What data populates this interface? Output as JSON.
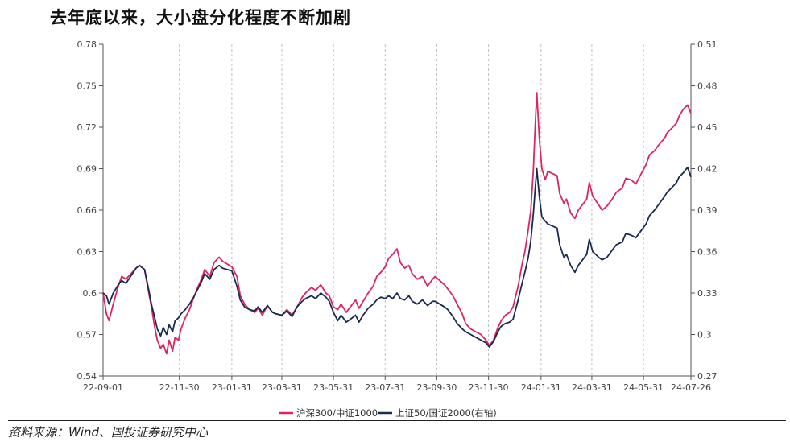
{
  "title": "去年底以来，大小盘分化程度不断加剧",
  "source": "资料来源：Wind、国投证券研究中心",
  "chart_data": {
    "type": "line",
    "x_ticks": [
      "22-09-01",
      "22-11-30",
      "23-01-31",
      "23-03-31",
      "23-05-31",
      "23-07-31",
      "23-09-30",
      "23-11-30",
      "24-01-31",
      "24-03-31",
      "24-05-31",
      "24-07-26"
    ],
    "y_left": {
      "min": 0.54,
      "max": 0.78,
      "ticks": [
        "0.54",
        "0.57",
        "0.6",
        "0.63",
        "0.66",
        "0.69",
        "0.72",
        "0.75",
        "0.78"
      ]
    },
    "y_right": {
      "min": 0.27,
      "max": 0.51,
      "ticks": [
        "0.27",
        "0.3",
        "0.33",
        "0.36",
        "0.39",
        "0.42",
        "0.45",
        "0.48",
        "0.51"
      ]
    },
    "grid": "vertical dashed",
    "legend_position": "bottom",
    "series": [
      {
        "name": "沪深300/中证1000",
        "axis": "left",
        "color": "#e0245e",
        "points": [
          [
            "22-09-01",
            0.6
          ],
          [
            "22-09-05",
            0.585
          ],
          [
            "22-09-08",
            0.58
          ],
          [
            "22-09-13",
            0.592
          ],
          [
            "22-09-19",
            0.605
          ],
          [
            "22-09-23",
            0.612
          ],
          [
            "22-09-28",
            0.61
          ],
          [
            "22-10-10",
            0.618
          ],
          [
            "22-10-14",
            0.62
          ],
          [
            "22-10-20",
            0.617
          ],
          [
            "22-10-25",
            0.6
          ],
          [
            "22-10-28",
            0.59
          ],
          [
            "22-11-01",
            0.575
          ],
          [
            "22-11-04",
            0.566
          ],
          [
            "22-11-08",
            0.56
          ],
          [
            "22-11-11",
            0.563
          ],
          [
            "22-11-15",
            0.556
          ],
          [
            "22-11-18",
            0.566
          ],
          [
            "22-11-22",
            0.558
          ],
          [
            "22-11-25",
            0.568
          ],
          [
            "22-11-29",
            0.566
          ],
          [
            "22-12-02",
            0.574
          ],
          [
            "22-12-07",
            0.582
          ],
          [
            "22-12-12",
            0.588
          ],
          [
            "22-12-16",
            0.595
          ],
          [
            "22-12-21",
            0.603
          ],
          [
            "22-12-26",
            0.61
          ],
          [
            "22-12-30",
            0.617
          ],
          [
            "23-01-05",
            0.612
          ],
          [
            "23-01-10",
            0.622
          ],
          [
            "23-01-16",
            0.626
          ],
          [
            "23-01-20",
            0.623
          ],
          [
            "23-01-31",
            0.619
          ],
          [
            "23-02-06",
            0.612
          ],
          [
            "23-02-10",
            0.598
          ],
          [
            "23-02-15",
            0.592
          ],
          [
            "23-02-21",
            0.588
          ],
          [
            "23-02-27",
            0.586
          ],
          [
            "23-03-03",
            0.589
          ],
          [
            "23-03-08",
            0.584
          ],
          [
            "23-03-14",
            0.591
          ],
          [
            "23-03-20",
            0.586
          ],
          [
            "23-03-24",
            0.585
          ],
          [
            "23-03-31",
            0.584
          ],
          [
            "23-04-06",
            0.588
          ],
          [
            "23-04-12",
            0.584
          ],
          [
            "23-04-18",
            0.59
          ],
          [
            "23-04-24",
            0.597
          ],
          [
            "23-04-28",
            0.6
          ],
          [
            "23-05-05",
            0.604
          ],
          [
            "23-05-10",
            0.602
          ],
          [
            "23-05-16",
            0.606
          ],
          [
            "23-05-22",
            0.6
          ],
          [
            "23-05-26",
            0.598
          ],
          [
            "23-05-31",
            0.59
          ],
          [
            "23-06-05",
            0.588
          ],
          [
            "23-06-09",
            0.592
          ],
          [
            "23-06-15",
            0.586
          ],
          [
            "23-06-20",
            0.59
          ],
          [
            "23-06-26",
            0.595
          ],
          [
            "23-06-30",
            0.589
          ],
          [
            "23-07-05",
            0.594
          ],
          [
            "23-07-11",
            0.6
          ],
          [
            "23-07-17",
            0.605
          ],
          [
            "23-07-21",
            0.612
          ],
          [
            "23-07-26",
            0.615
          ],
          [
            "23-07-31",
            0.619
          ],
          [
            "23-08-04",
            0.625
          ],
          [
            "23-08-09",
            0.628
          ],
          [
            "23-08-14",
            0.632
          ],
          [
            "23-08-18",
            0.622
          ],
          [
            "23-08-23",
            0.618
          ],
          [
            "23-08-28",
            0.62
          ],
          [
            "23-09-01",
            0.614
          ],
          [
            "23-09-07",
            0.61
          ],
          [
            "23-09-13",
            0.612
          ],
          [
            "23-09-19",
            0.605
          ],
          [
            "23-09-25",
            0.61
          ],
          [
            "23-09-28",
            0.612
          ],
          [
            "23-10-09",
            0.606
          ],
          [
            "23-10-13",
            0.603
          ],
          [
            "23-10-19",
            0.598
          ],
          [
            "23-10-24",
            0.592
          ],
          [
            "23-10-30",
            0.585
          ],
          [
            "23-11-03",
            0.578
          ],
          [
            "23-11-09",
            0.574
          ],
          [
            "23-11-15",
            0.572
          ],
          [
            "23-11-21",
            0.57
          ],
          [
            "23-11-27",
            0.566
          ],
          [
            "23-12-01",
            0.562
          ],
          [
            "23-12-06",
            0.566
          ],
          [
            "23-12-11",
            0.575
          ],
          [
            "23-12-15",
            0.58
          ],
          [
            "23-12-20",
            0.584
          ],
          [
            "23-12-25",
            0.586
          ],
          [
            "23-12-29",
            0.59
          ],
          [
            "24-01-04",
            0.605
          ],
          [
            "24-01-09",
            0.622
          ],
          [
            "24-01-12",
            0.63
          ],
          [
            "24-01-16",
            0.646
          ],
          [
            "24-01-19",
            0.66
          ],
          [
            "24-01-22",
            0.69
          ],
          [
            "24-01-24",
            0.72
          ],
          [
            "24-01-26",
            0.745
          ],
          [
            "24-01-29",
            0.712
          ],
          [
            "24-02-01",
            0.69
          ],
          [
            "24-02-05",
            0.682
          ],
          [
            "24-02-08",
            0.688
          ],
          [
            "24-02-19",
            0.685
          ],
          [
            "24-02-22",
            0.672
          ],
          [
            "24-02-27",
            0.665
          ],
          [
            "24-03-01",
            0.668
          ],
          [
            "24-03-06",
            0.658
          ],
          [
            "24-03-11",
            0.654
          ],
          [
            "24-03-15",
            0.66
          ],
          [
            "24-03-20",
            0.664
          ],
          [
            "24-03-25",
            0.668
          ],
          [
            "24-03-28",
            0.68
          ],
          [
            "24-04-01",
            0.67
          ],
          [
            "24-04-08",
            0.664
          ],
          [
            "24-04-12",
            0.66
          ],
          [
            "24-04-18",
            0.663
          ],
          [
            "24-04-24",
            0.668
          ],
          [
            "24-04-29",
            0.673
          ],
          [
            "24-05-06",
            0.676
          ],
          [
            "24-05-10",
            0.683
          ],
          [
            "24-05-16",
            0.682
          ],
          [
            "24-05-22",
            0.679
          ],
          [
            "24-05-28",
            0.686
          ],
          [
            "24-06-03",
            0.693
          ],
          [
            "24-06-07",
            0.7
          ],
          [
            "24-06-13",
            0.703
          ],
          [
            "24-06-19",
            0.708
          ],
          [
            "24-06-25",
            0.712
          ],
          [
            "24-06-28",
            0.716
          ],
          [
            "24-07-03",
            0.719
          ],
          [
            "24-07-09",
            0.723
          ],
          [
            "24-07-12",
            0.728
          ],
          [
            "24-07-17",
            0.733
          ],
          [
            "24-07-22",
            0.736
          ],
          [
            "24-07-26",
            0.73
          ]
        ]
      },
      {
        "name": "上证50/国证2000(右轴)",
        "axis": "right",
        "color": "#1a2a52",
        "points": [
          [
            "22-09-01",
            0.33
          ],
          [
            "22-09-05",
            0.328
          ],
          [
            "22-09-08",
            0.322
          ],
          [
            "22-09-13",
            0.33
          ],
          [
            "22-09-19",
            0.336
          ],
          [
            "22-09-23",
            0.339
          ],
          [
            "22-09-28",
            0.337
          ],
          [
            "22-10-10",
            0.348
          ],
          [
            "22-10-14",
            0.35
          ],
          [
            "22-10-20",
            0.347
          ],
          [
            "22-10-25",
            0.332
          ],
          [
            "22-10-28",
            0.322
          ],
          [
            "22-11-01",
            0.312
          ],
          [
            "22-11-04",
            0.304
          ],
          [
            "22-11-08",
            0.299
          ],
          [
            "22-11-11",
            0.305
          ],
          [
            "22-11-15",
            0.3
          ],
          [
            "22-11-18",
            0.307
          ],
          [
            "22-11-22",
            0.302
          ],
          [
            "22-11-25",
            0.31
          ],
          [
            "22-11-29",
            0.312
          ],
          [
            "22-12-02",
            0.315
          ],
          [
            "22-12-07",
            0.318
          ],
          [
            "22-12-12",
            0.322
          ],
          [
            "22-12-16",
            0.326
          ],
          [
            "22-12-21",
            0.332
          ],
          [
            "22-12-26",
            0.338
          ],
          [
            "22-12-30",
            0.344
          ],
          [
            "23-01-05",
            0.34
          ],
          [
            "23-01-10",
            0.347
          ],
          [
            "23-01-16",
            0.35
          ],
          [
            "23-01-20",
            0.348
          ],
          [
            "23-01-31",
            0.346
          ],
          [
            "23-02-06",
            0.335
          ],
          [
            "23-02-10",
            0.325
          ],
          [
            "23-02-15",
            0.32
          ],
          [
            "23-02-21",
            0.318
          ],
          [
            "23-02-27",
            0.317
          ],
          [
            "23-03-03",
            0.32
          ],
          [
            "23-03-08",
            0.316
          ],
          [
            "23-03-14",
            0.321
          ],
          [
            "23-03-20",
            0.316
          ],
          [
            "23-03-24",
            0.315
          ],
          [
            "23-03-31",
            0.314
          ],
          [
            "23-04-06",
            0.317
          ],
          [
            "23-04-12",
            0.313
          ],
          [
            "23-04-18",
            0.32
          ],
          [
            "23-04-24",
            0.324
          ],
          [
            "23-04-28",
            0.326
          ],
          [
            "23-05-05",
            0.328
          ],
          [
            "23-05-10",
            0.326
          ],
          [
            "23-05-16",
            0.33
          ],
          [
            "23-05-22",
            0.327
          ],
          [
            "23-05-26",
            0.324
          ],
          [
            "23-05-31",
            0.316
          ],
          [
            "23-06-05",
            0.31
          ],
          [
            "23-06-09",
            0.314
          ],
          [
            "23-06-15",
            0.309
          ],
          [
            "23-06-20",
            0.311
          ],
          [
            "23-06-26",
            0.314
          ],
          [
            "23-06-30",
            0.309
          ],
          [
            "23-07-05",
            0.314
          ],
          [
            "23-07-11",
            0.319
          ],
          [
            "23-07-17",
            0.322
          ],
          [
            "23-07-21",
            0.325
          ],
          [
            "23-07-26",
            0.327
          ],
          [
            "23-07-31",
            0.326
          ],
          [
            "23-08-04",
            0.328
          ],
          [
            "23-08-09",
            0.326
          ],
          [
            "23-08-14",
            0.33
          ],
          [
            "23-08-18",
            0.326
          ],
          [
            "23-08-23",
            0.325
          ],
          [
            "23-08-28",
            0.328
          ],
          [
            "23-09-01",
            0.324
          ],
          [
            "23-09-07",
            0.322
          ],
          [
            "23-09-13",
            0.325
          ],
          [
            "23-09-19",
            0.321
          ],
          [
            "23-09-25",
            0.324
          ],
          [
            "23-09-28",
            0.324
          ],
          [
            "23-10-09",
            0.32
          ],
          [
            "23-10-13",
            0.318
          ],
          [
            "23-10-19",
            0.313
          ],
          [
            "23-10-24",
            0.308
          ],
          [
            "23-10-30",
            0.304
          ],
          [
            "23-11-03",
            0.302
          ],
          [
            "23-11-09",
            0.3
          ],
          [
            "23-11-15",
            0.298
          ],
          [
            "23-11-21",
            0.296
          ],
          [
            "23-11-27",
            0.294
          ],
          [
            "23-12-01",
            0.291
          ],
          [
            "23-12-06",
            0.295
          ],
          [
            "23-12-11",
            0.302
          ],
          [
            "23-12-15",
            0.306
          ],
          [
            "23-12-20",
            0.308
          ],
          [
            "23-12-25",
            0.309
          ],
          [
            "23-12-29",
            0.311
          ],
          [
            "24-01-04",
            0.325
          ],
          [
            "24-01-09",
            0.338
          ],
          [
            "24-01-12",
            0.345
          ],
          [
            "24-01-16",
            0.356
          ],
          [
            "24-01-19",
            0.368
          ],
          [
            "24-01-22",
            0.388
          ],
          [
            "24-01-24",
            0.405
          ],
          [
            "24-01-26",
            0.42
          ],
          [
            "24-01-29",
            0.4
          ],
          [
            "24-02-01",
            0.385
          ],
          [
            "24-02-05",
            0.382
          ],
          [
            "24-02-08",
            0.38
          ],
          [
            "24-02-19",
            0.377
          ],
          [
            "24-02-22",
            0.365
          ],
          [
            "24-02-27",
            0.356
          ],
          [
            "24-03-01",
            0.358
          ],
          [
            "24-03-06",
            0.35
          ],
          [
            "24-03-11",
            0.345
          ],
          [
            "24-03-15",
            0.35
          ],
          [
            "24-03-20",
            0.354
          ],
          [
            "24-03-25",
            0.358
          ],
          [
            "24-03-28",
            0.369
          ],
          [
            "24-04-01",
            0.36
          ],
          [
            "24-04-08",
            0.356
          ],
          [
            "24-04-12",
            0.354
          ],
          [
            "24-04-18",
            0.356
          ],
          [
            "24-04-24",
            0.361
          ],
          [
            "24-04-29",
            0.365
          ],
          [
            "24-05-06",
            0.367
          ],
          [
            "24-05-10",
            0.373
          ],
          [
            "24-05-16",
            0.372
          ],
          [
            "24-05-22",
            0.37
          ],
          [
            "24-05-28",
            0.375
          ],
          [
            "24-06-03",
            0.38
          ],
          [
            "24-06-07",
            0.386
          ],
          [
            "24-06-13",
            0.39
          ],
          [
            "24-06-19",
            0.395
          ],
          [
            "24-06-25",
            0.4
          ],
          [
            "24-06-28",
            0.403
          ],
          [
            "24-07-03",
            0.406
          ],
          [
            "24-07-09",
            0.41
          ],
          [
            "24-07-12",
            0.414
          ],
          [
            "24-07-17",
            0.417
          ],
          [
            "24-07-22",
            0.421
          ],
          [
            "24-07-26",
            0.414
          ]
        ]
      }
    ]
  }
}
